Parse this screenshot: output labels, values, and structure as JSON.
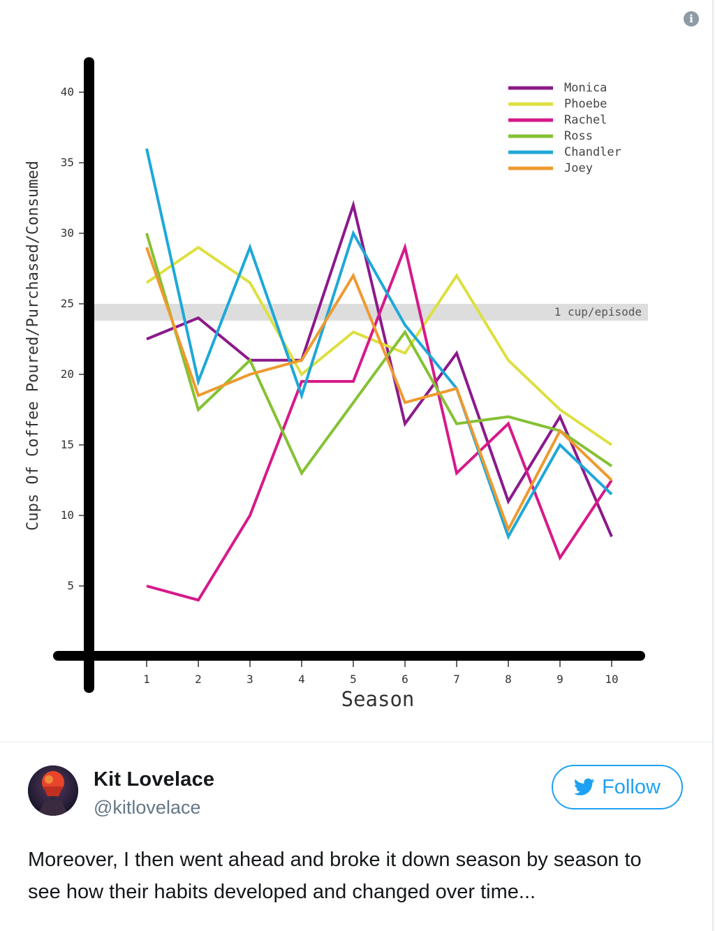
{
  "info_icon": "i",
  "chart_data": {
    "type": "line",
    "title": "",
    "xlabel": "Season",
    "ylabel": "Cups Of Coffee Poured/Purchased/Consumed",
    "x": [
      1,
      2,
      3,
      4,
      5,
      6,
      7,
      8,
      9,
      10
    ],
    "x_tick_labels": [
      "1",
      "2",
      "3",
      "4",
      "5",
      "6",
      "7",
      "8",
      "9",
      "10"
    ],
    "y_ticks": [
      5,
      10,
      15,
      20,
      25,
      30,
      35,
      40
    ],
    "y_tick_labels": [
      "5",
      "10",
      "15",
      "20",
      "25",
      "30",
      "35",
      "40"
    ],
    "ylim": [
      0,
      43
    ],
    "xlim": [
      0,
      11
    ],
    "grid": false,
    "legend_position": "top-right",
    "reference_band": {
      "label": "1 cup/episode",
      "y_range": [
        23.8,
        25
      ],
      "color": "#dddddd"
    },
    "series": [
      {
        "name": "Monica",
        "color": "#8b1a8b",
        "values": [
          22.5,
          24,
          21,
          21,
          32,
          16.5,
          21.5,
          11,
          17,
          8.5
        ]
      },
      {
        "name": "Phoebe",
        "color": "#dde040",
        "values": [
          26.5,
          29,
          26.5,
          20,
          23,
          21.5,
          27,
          21,
          17.5,
          15
        ]
      },
      {
        "name": "Rachel",
        "color": "#d6198a",
        "values": [
          5,
          4,
          10,
          19.5,
          19.5,
          29,
          13,
          16.5,
          7,
          12.5
        ]
      },
      {
        "name": "Ross",
        "color": "#85c134",
        "values": [
          30,
          17.5,
          21,
          13,
          18,
          23,
          16.5,
          17,
          16,
          13.5
        ]
      },
      {
        "name": "Chandler",
        "color": "#1ea8d8",
        "values": [
          36,
          19.5,
          29,
          18.5,
          30,
          23.5,
          19,
          8.5,
          15,
          11.5
        ]
      },
      {
        "name": "Joey",
        "color": "#ee9a30",
        "values": [
          29,
          18.5,
          20,
          21,
          27,
          18,
          19,
          9,
          16,
          12.5
        ]
      }
    ]
  },
  "tweet": {
    "author_name": "Kit Lovelace",
    "author_handle": "@kitlovelace",
    "follow_label": "Follow",
    "text": "Moreover, I then went ahead and broke it down season by season to see how their habits developed and changed over time..."
  }
}
